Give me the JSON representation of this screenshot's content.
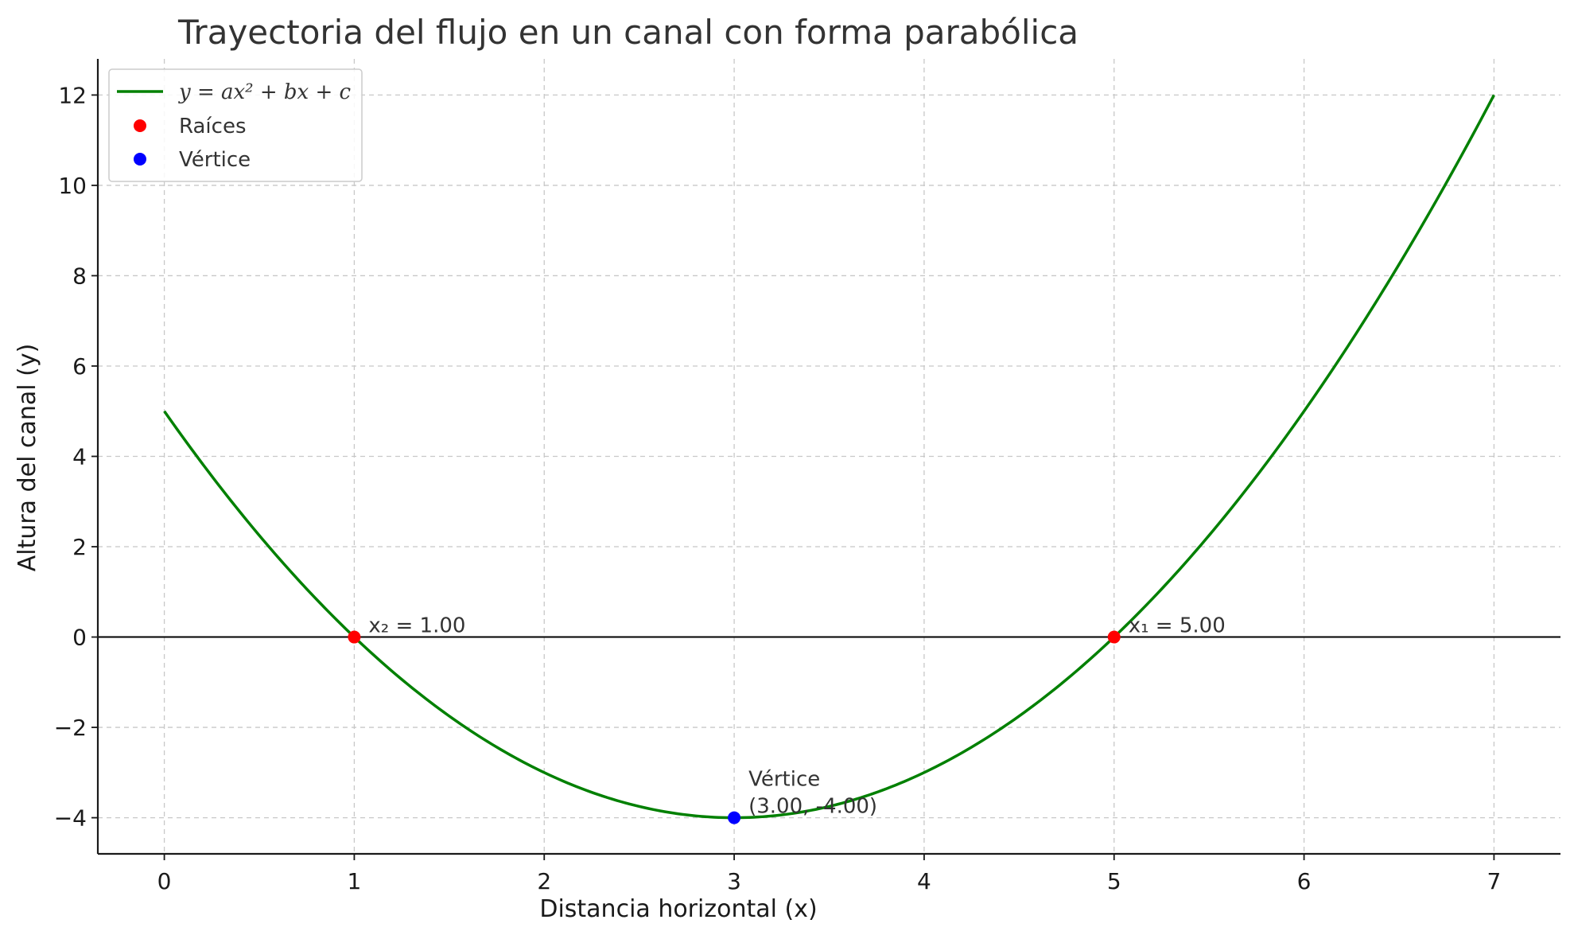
{
  "chart_data": {
    "type": "line",
    "title": "Trayectoria del flujo en un canal con forma parabólica",
    "xlabel": "Distancia horizontal (x)",
    "ylabel": "Altura del canal (y)",
    "xlim": [
      -0.35,
      7.35
    ],
    "ylim": [
      -4.8,
      12.8
    ],
    "xticks": [
      0,
      1,
      2,
      3,
      4,
      5,
      6,
      7
    ],
    "yticks": [
      -4,
      -2,
      0,
      2,
      4,
      6,
      8,
      10,
      12
    ],
    "xtick_labels": [
      "0",
      "1",
      "2",
      "3",
      "4",
      "5",
      "6",
      "7"
    ],
    "ytick_labels": [
      "−4",
      "−2",
      "0",
      "2",
      "4",
      "6",
      "8",
      "10",
      "12"
    ],
    "grid": true,
    "legend_position": "top-left",
    "series": [
      {
        "name": "y = ax² + bx + c",
        "kind": "line",
        "color": "#008000",
        "x_range": [
          0,
          7
        ],
        "coefficients": {
          "a": 1,
          "b": -6,
          "c": 5
        }
      },
      {
        "name": "Raíces",
        "kind": "scatter",
        "color": "#ff0000",
        "points": [
          {
            "x": 1,
            "y": 0
          },
          {
            "x": 5,
            "y": 0
          }
        ]
      },
      {
        "name": "Vértice",
        "kind": "scatter",
        "color": "#0000ff",
        "points": [
          {
            "x": 3,
            "y": -4
          }
        ]
      }
    ],
    "reference_lines": [
      {
        "axis": "y",
        "value": 0,
        "color": "#000000"
      }
    ],
    "annotations": [
      {
        "text": "x₂ = 1.00",
        "x": 1,
        "y": 0
      },
      {
        "text": "x₁ = 5.00",
        "x": 5,
        "y": 0
      },
      {
        "text": "Vértice",
        "text2": "(3.00, -4.00)",
        "x": 3,
        "y": -4
      }
    ]
  }
}
